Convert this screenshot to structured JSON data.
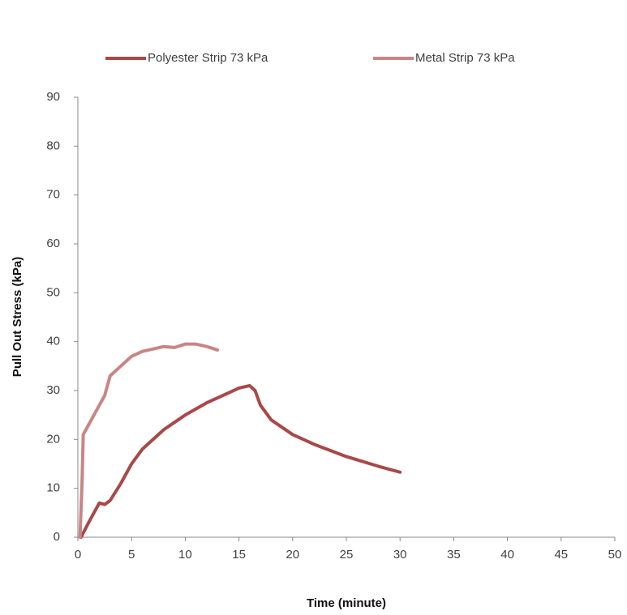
{
  "chart_data": {
    "type": "line",
    "x_label": "Time (minute)",
    "y_label": "Pull Out Stress (kPa)",
    "xlim": [
      0,
      50
    ],
    "xticks": [
      0,
      5,
      10,
      15,
      20,
      25,
      30,
      35,
      40,
      45,
      50
    ],
    "ylim": [
      0,
      90
    ],
    "yticks": [
      0,
      10,
      20,
      30,
      40,
      50,
      60,
      70,
      80,
      90
    ],
    "grid": false,
    "legend": "top",
    "series": [
      {
        "name": "Polyester Strip 73 kPa",
        "color": "#a94848",
        "x": [
          0.3,
          1,
          2,
          2.5,
          3,
          4,
          5,
          6,
          8,
          10,
          12,
          14,
          15,
          16,
          16.5,
          17,
          18,
          20,
          22,
          25,
          28,
          30
        ],
        "values": [
          0,
          3,
          7,
          6.7,
          7.5,
          11,
          15,
          18,
          22,
          25,
          27.5,
          29.5,
          30.5,
          31,
          30,
          27,
          24,
          21,
          19,
          16.5,
          14.5,
          13.3
        ]
      },
      {
        "name": "Metal Strip 73 kPa",
        "color": "#c98585",
        "x": [
          0.2,
          0.4,
          0.5,
          1,
          1.5,
          2,
          2.5,
          3,
          4,
          5,
          6,
          7,
          8,
          9,
          10,
          11,
          12,
          13
        ],
        "values": [
          0,
          12,
          21,
          23,
          25,
          27,
          29,
          33,
          35,
          37,
          38,
          38.5,
          39,
          38.8,
          39.5,
          39.5,
          39,
          38.3
        ]
      }
    ]
  }
}
